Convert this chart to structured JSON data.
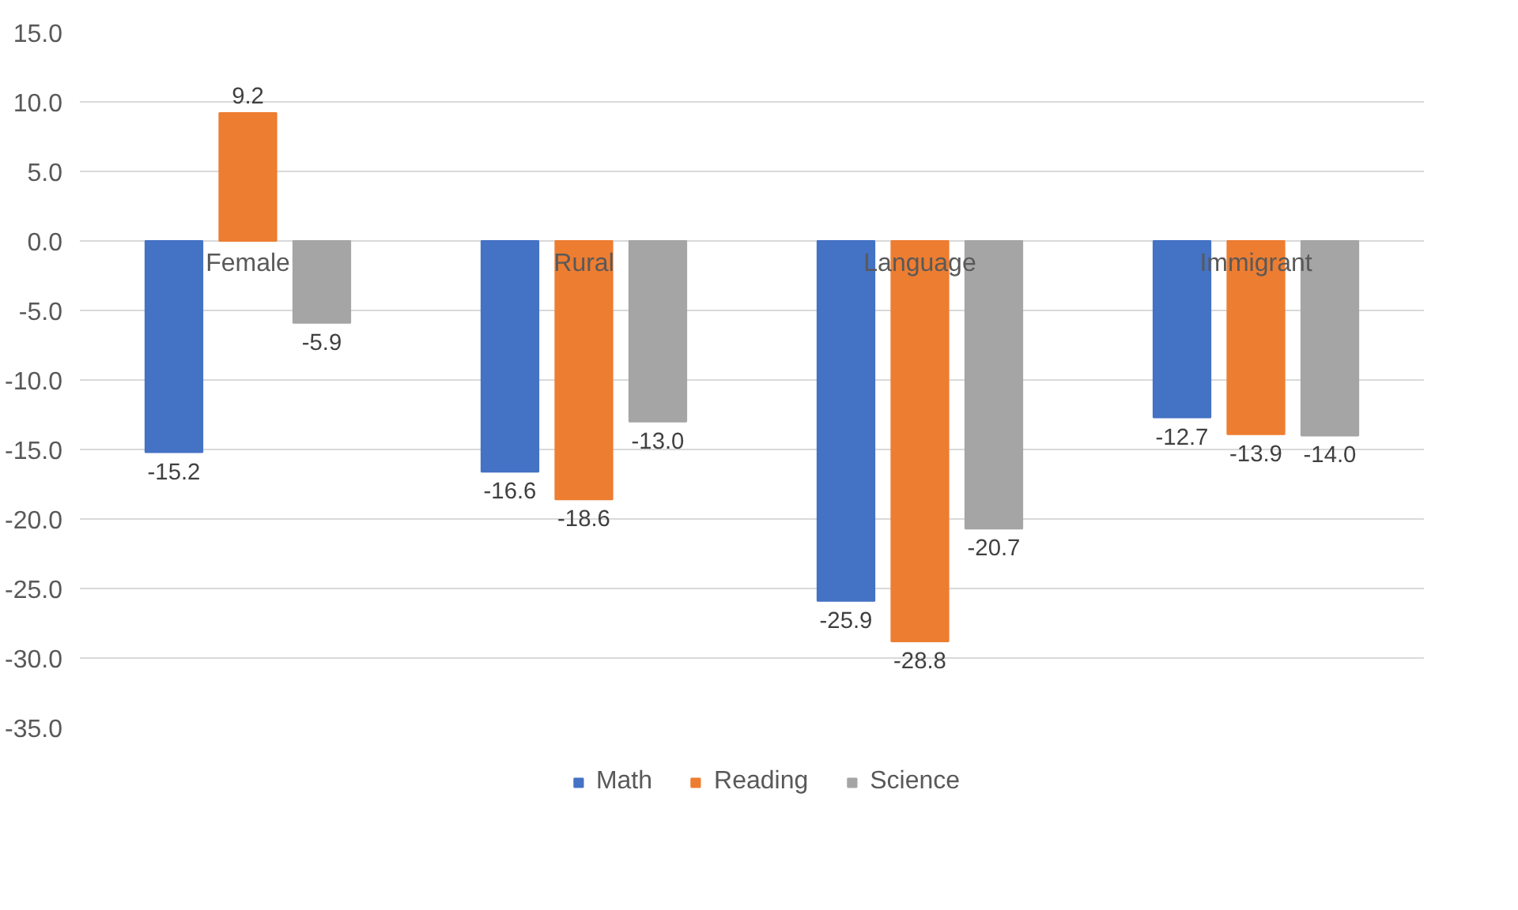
{
  "chart_data": {
    "type": "bar",
    "categories": [
      "Female",
      "Rural",
      "Language",
      "Immigrant"
    ],
    "series": [
      {
        "name": "Math",
        "color": "#4472c4",
        "values": [
          -15.2,
          -16.6,
          -25.9,
          -12.7
        ],
        "value_labels": [
          "-15.2",
          "-16.6",
          "-25.9",
          "-12.7"
        ]
      },
      {
        "name": "Reading",
        "color": "#ed7d31",
        "values": [
          9.2,
          -18.6,
          -28.8,
          -13.9
        ],
        "value_labels": [
          "9.2",
          "-18.6",
          "-28.8",
          "-13.9"
        ]
      },
      {
        "name": "Science",
        "color": "#a5a5a5",
        "values": [
          -5.9,
          -13.0,
          -20.7,
          -14.0
        ],
        "value_labels": [
          "-5.9",
          "-13.0",
          "-20.7",
          "-14.0"
        ]
      }
    ],
    "ylim": [
      -35,
      15
    ],
    "yticks": [
      {
        "value": -35,
        "label": "-35.0"
      },
      {
        "value": -30,
        "label": "-30.0"
      },
      {
        "value": -25,
        "label": "-25.0"
      },
      {
        "value": -20,
        "label": "-20.0"
      },
      {
        "value": -15,
        "label": "-15.0"
      },
      {
        "value": -10,
        "label": "-10.0"
      },
      {
        "value": -5,
        "label": "-5.0"
      },
      {
        "value": 0,
        "label": "0.0"
      },
      {
        "value": 5,
        "label": "5.0"
      },
      {
        "value": 10,
        "label": "10.0"
      },
      {
        "value": 15,
        "label": "15.0"
      }
    ],
    "grid": "y",
    "legend": "bottom"
  }
}
